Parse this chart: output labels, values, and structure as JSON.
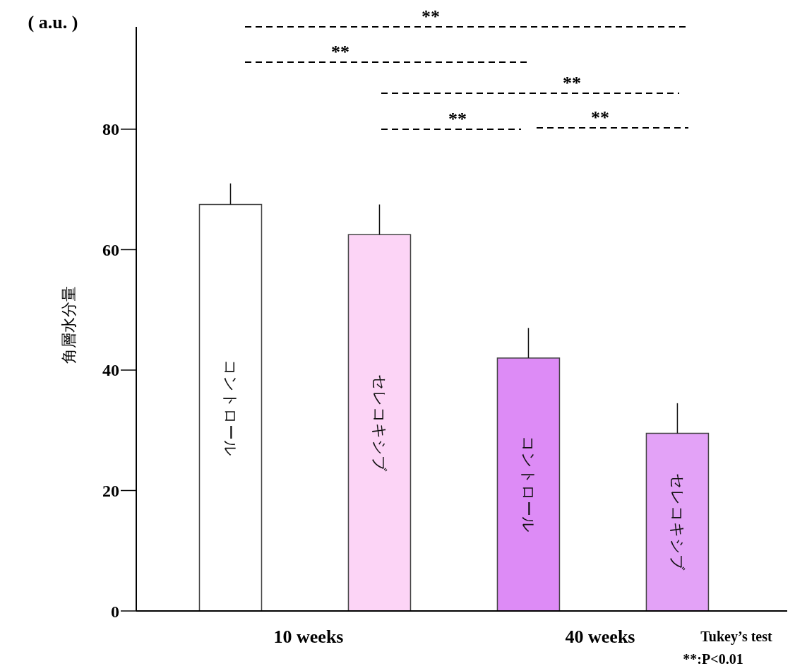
{
  "chart_data": {
    "type": "bar",
    "ylabel": "角層水分量",
    "categories": [
      "コントロール",
      "セレコキシブ",
      "コントロール",
      "セレコキシブ"
    ],
    "values": [
      67.5,
      62.5,
      42,
      29.5
    ],
    "errors": [
      [
        67.5,
        71
      ],
      [
        62.5,
        67.5
      ],
      [
        42,
        47
      ],
      [
        29.5,
        34.5
      ]
    ],
    "colors": [
      "#ffffff",
      "#fcd4f6",
      "#dd8bf6",
      "#e3a2f7"
    ],
    "ylim": [
      0,
      97
    ],
    "yticks": [
      0,
      20,
      40,
      60,
      80
    ],
    "annotations": [
      "**",
      "**",
      "**",
      "**",
      "**",
      "10 weeks",
      "40 weeks",
      "( a.u. )",
      "Tukey’s test",
      "**:P<0.01"
    ]
  }
}
